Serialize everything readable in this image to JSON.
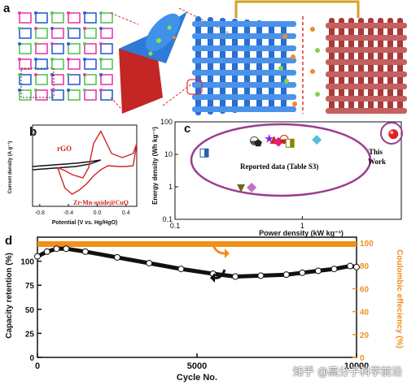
{
  "panels": {
    "a": "a",
    "b": "b",
    "c": "c",
    "d": "d"
  },
  "colors": {
    "red_curve": "#d02525",
    "black_curve": "#111111",
    "purple": "#9b3d8f",
    "orange": "#f0901a",
    "frame_red": "#e03030",
    "gold": "#d4a020"
  },
  "chart_data": [
    {
      "type": "line",
      "panel": "b",
      "xlabel": "Potential (V vs. Hg/HgO)",
      "ylabel": "Current density (A g⁻¹)",
      "xticks": [
        "-0.8",
        "-0.4",
        "0.0",
        "0.4"
      ],
      "xlim": [
        -0.9,
        0.55
      ],
      "ylim": [
        -1,
        1
      ],
      "series": [
        {
          "name": "rGO",
          "color": "#111111",
          "x": [
            -0.9,
            -0.6,
            -0.3,
            -0.1,
            0.05,
            -0.1,
            -0.3,
            -0.6,
            -0.9
          ],
          "y": [
            -0.02,
            0.02,
            0.06,
            0.1,
            0.14,
            0.04,
            -0.02,
            -0.06,
            -0.1
          ]
        },
        {
          "name": "Zr-Mn-oxide@CuO",
          "color": "#d02525",
          "x": [
            -0.55,
            -0.45,
            -0.35,
            -0.2,
            -0.12,
            -0.05,
            0.05,
            0.2,
            0.35,
            0.5,
            0.55,
            0.5,
            0.4,
            0.3,
            0.15,
            0.05,
            -0.05,
            -0.15,
            -0.25,
            -0.35,
            -0.45,
            -0.55
          ],
          "y": [
            -0.05,
            -0.12,
            -0.22,
            -0.3,
            -0.05,
            0.55,
            0.85,
            0.3,
            0.2,
            0.3,
            0.55,
            0.0,
            -0.02,
            -0.02,
            0.0,
            -0.1,
            -0.25,
            -0.45,
            -0.6,
            -0.7,
            -0.55,
            -0.05
          ]
        }
      ]
    },
    {
      "type": "scatter",
      "panel": "c",
      "xlabel": "Power density (kW kg⁻¹)",
      "ylabel": "Energy density (Wh kg⁻¹)",
      "xscale": "log",
      "yscale": "log",
      "xlim": [
        0.1,
        6
      ],
      "ylim": [
        0.1,
        100
      ],
      "xticks": [
        "0.1",
        "1"
      ],
      "yticks": [
        "0.1",
        "1",
        "10",
        "100"
      ],
      "annotations": [
        "Reported data (Table S3)",
        "This Work"
      ],
      "reported_points": [
        {
          "x": 0.17,
          "y": 11,
          "shape": "square-half",
          "color": "#2b5fb0"
        },
        {
          "x": 0.42,
          "y": 26,
          "shape": "circle-half",
          "color": "#555555"
        },
        {
          "x": 0.45,
          "y": 22,
          "shape": "pentagon",
          "color": "#222222"
        },
        {
          "x": 0.55,
          "y": 30,
          "shape": "star",
          "color": "#8a2be2"
        },
        {
          "x": 0.6,
          "y": 28,
          "shape": "triangle",
          "color": "#d02525"
        },
        {
          "x": 0.65,
          "y": 24,
          "shape": "diamond",
          "color": "#e0207a"
        },
        {
          "x": 0.72,
          "y": 29,
          "shape": "circle-half",
          "color": "#c82020"
        },
        {
          "x": 0.8,
          "y": 22,
          "shape": "square-half",
          "color": "#888800"
        },
        {
          "x": 1.3,
          "y": 28,
          "shape": "diamond-half",
          "color": "#55bde0"
        },
        {
          "x": 0.33,
          "y": 0.9,
          "shape": "triangle-down",
          "color": "#6b6b1f"
        },
        {
          "x": 0.4,
          "y": 0.95,
          "shape": "diamond",
          "color": "#c070c0"
        }
      ],
      "this_work": {
        "x": 5.2,
        "y": 42,
        "color": "#e02020"
      }
    },
    {
      "type": "line",
      "panel": "d",
      "xlabel": "Cycle No.",
      "ylabel": "Capacity retention (%)",
      "y2label": "Coulombic effeciency (%)",
      "xlim": [
        0,
        10000
      ],
      "xticks": [
        "0",
        "5000",
        "10000"
      ],
      "ylim": [
        0,
        125
      ],
      "yticks": [
        "0",
        "25",
        "50",
        "75",
        "100"
      ],
      "y2lim": [
        0,
        105
      ],
      "y2ticks": [
        "0",
        "20",
        "40",
        "60",
        "80",
        "100"
      ],
      "series": [
        {
          "name": "Capacity retention",
          "color": "#111111",
          "x": [
            0,
            300,
            600,
            900,
            1500,
            2500,
            3500,
            4500,
            5500,
            6200,
            7000,
            7800,
            8300,
            8800,
            9300,
            9800,
            10000
          ],
          "y": [
            105,
            110,
            113,
            113,
            110,
            104,
            98,
            92,
            87,
            84,
            85,
            86,
            88,
            90,
            92,
            95,
            94
          ]
        },
        {
          "name": "Coulombic efficiency",
          "color": "#f0901a",
          "x": [
            0,
            1000,
            2000,
            3000,
            4000,
            5000,
            6000,
            7000,
            8000,
            9000,
            10000
          ],
          "y": [
            99,
            99,
            99,
            99,
            99,
            99,
            99,
            99,
            99,
            99,
            99
          ]
        }
      ]
    }
  ],
  "labels": {
    "b_rgo": "rGO",
    "b_zr": "Zr-Mn-oxide@CuO",
    "c_reported": "Reported data (Table S3)",
    "c_this1": "This",
    "c_this2": "Work",
    "watermark": "知乎 @高分子科学前沿"
  }
}
